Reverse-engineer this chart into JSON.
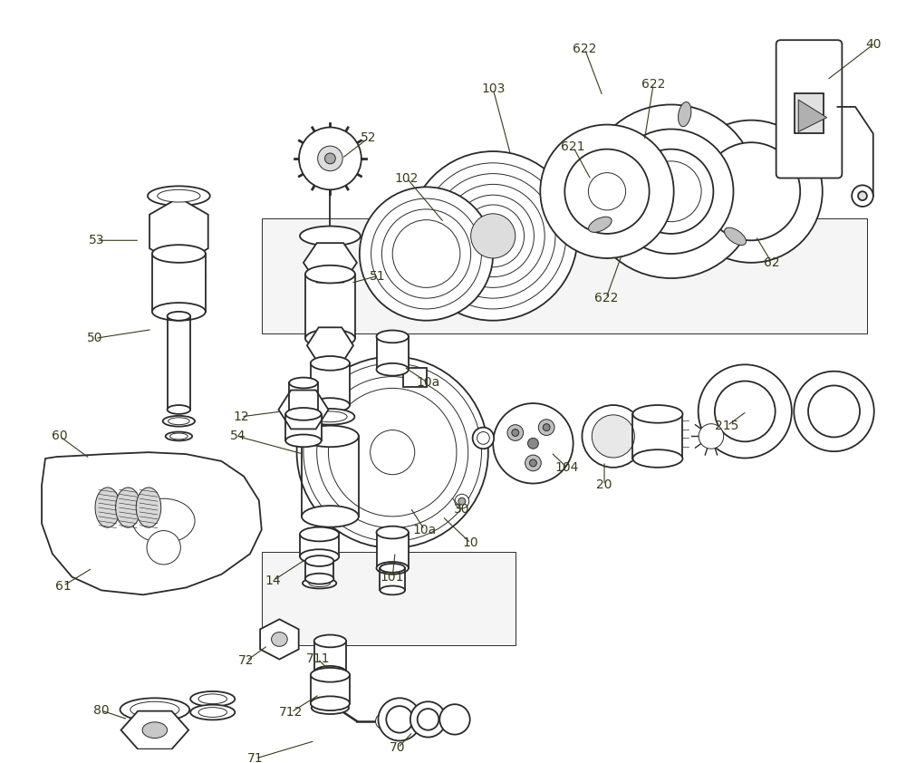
{
  "bg_color": "#ffffff",
  "line_color": "#2a2a2a",
  "label_color": "#3a3a1a",
  "fig_width": 10.0,
  "fig_height": 8.42,
  "lw_main": 1.3,
  "lw_thin": 0.7,
  "lw_thick": 1.8,
  "label_fs": 10
}
